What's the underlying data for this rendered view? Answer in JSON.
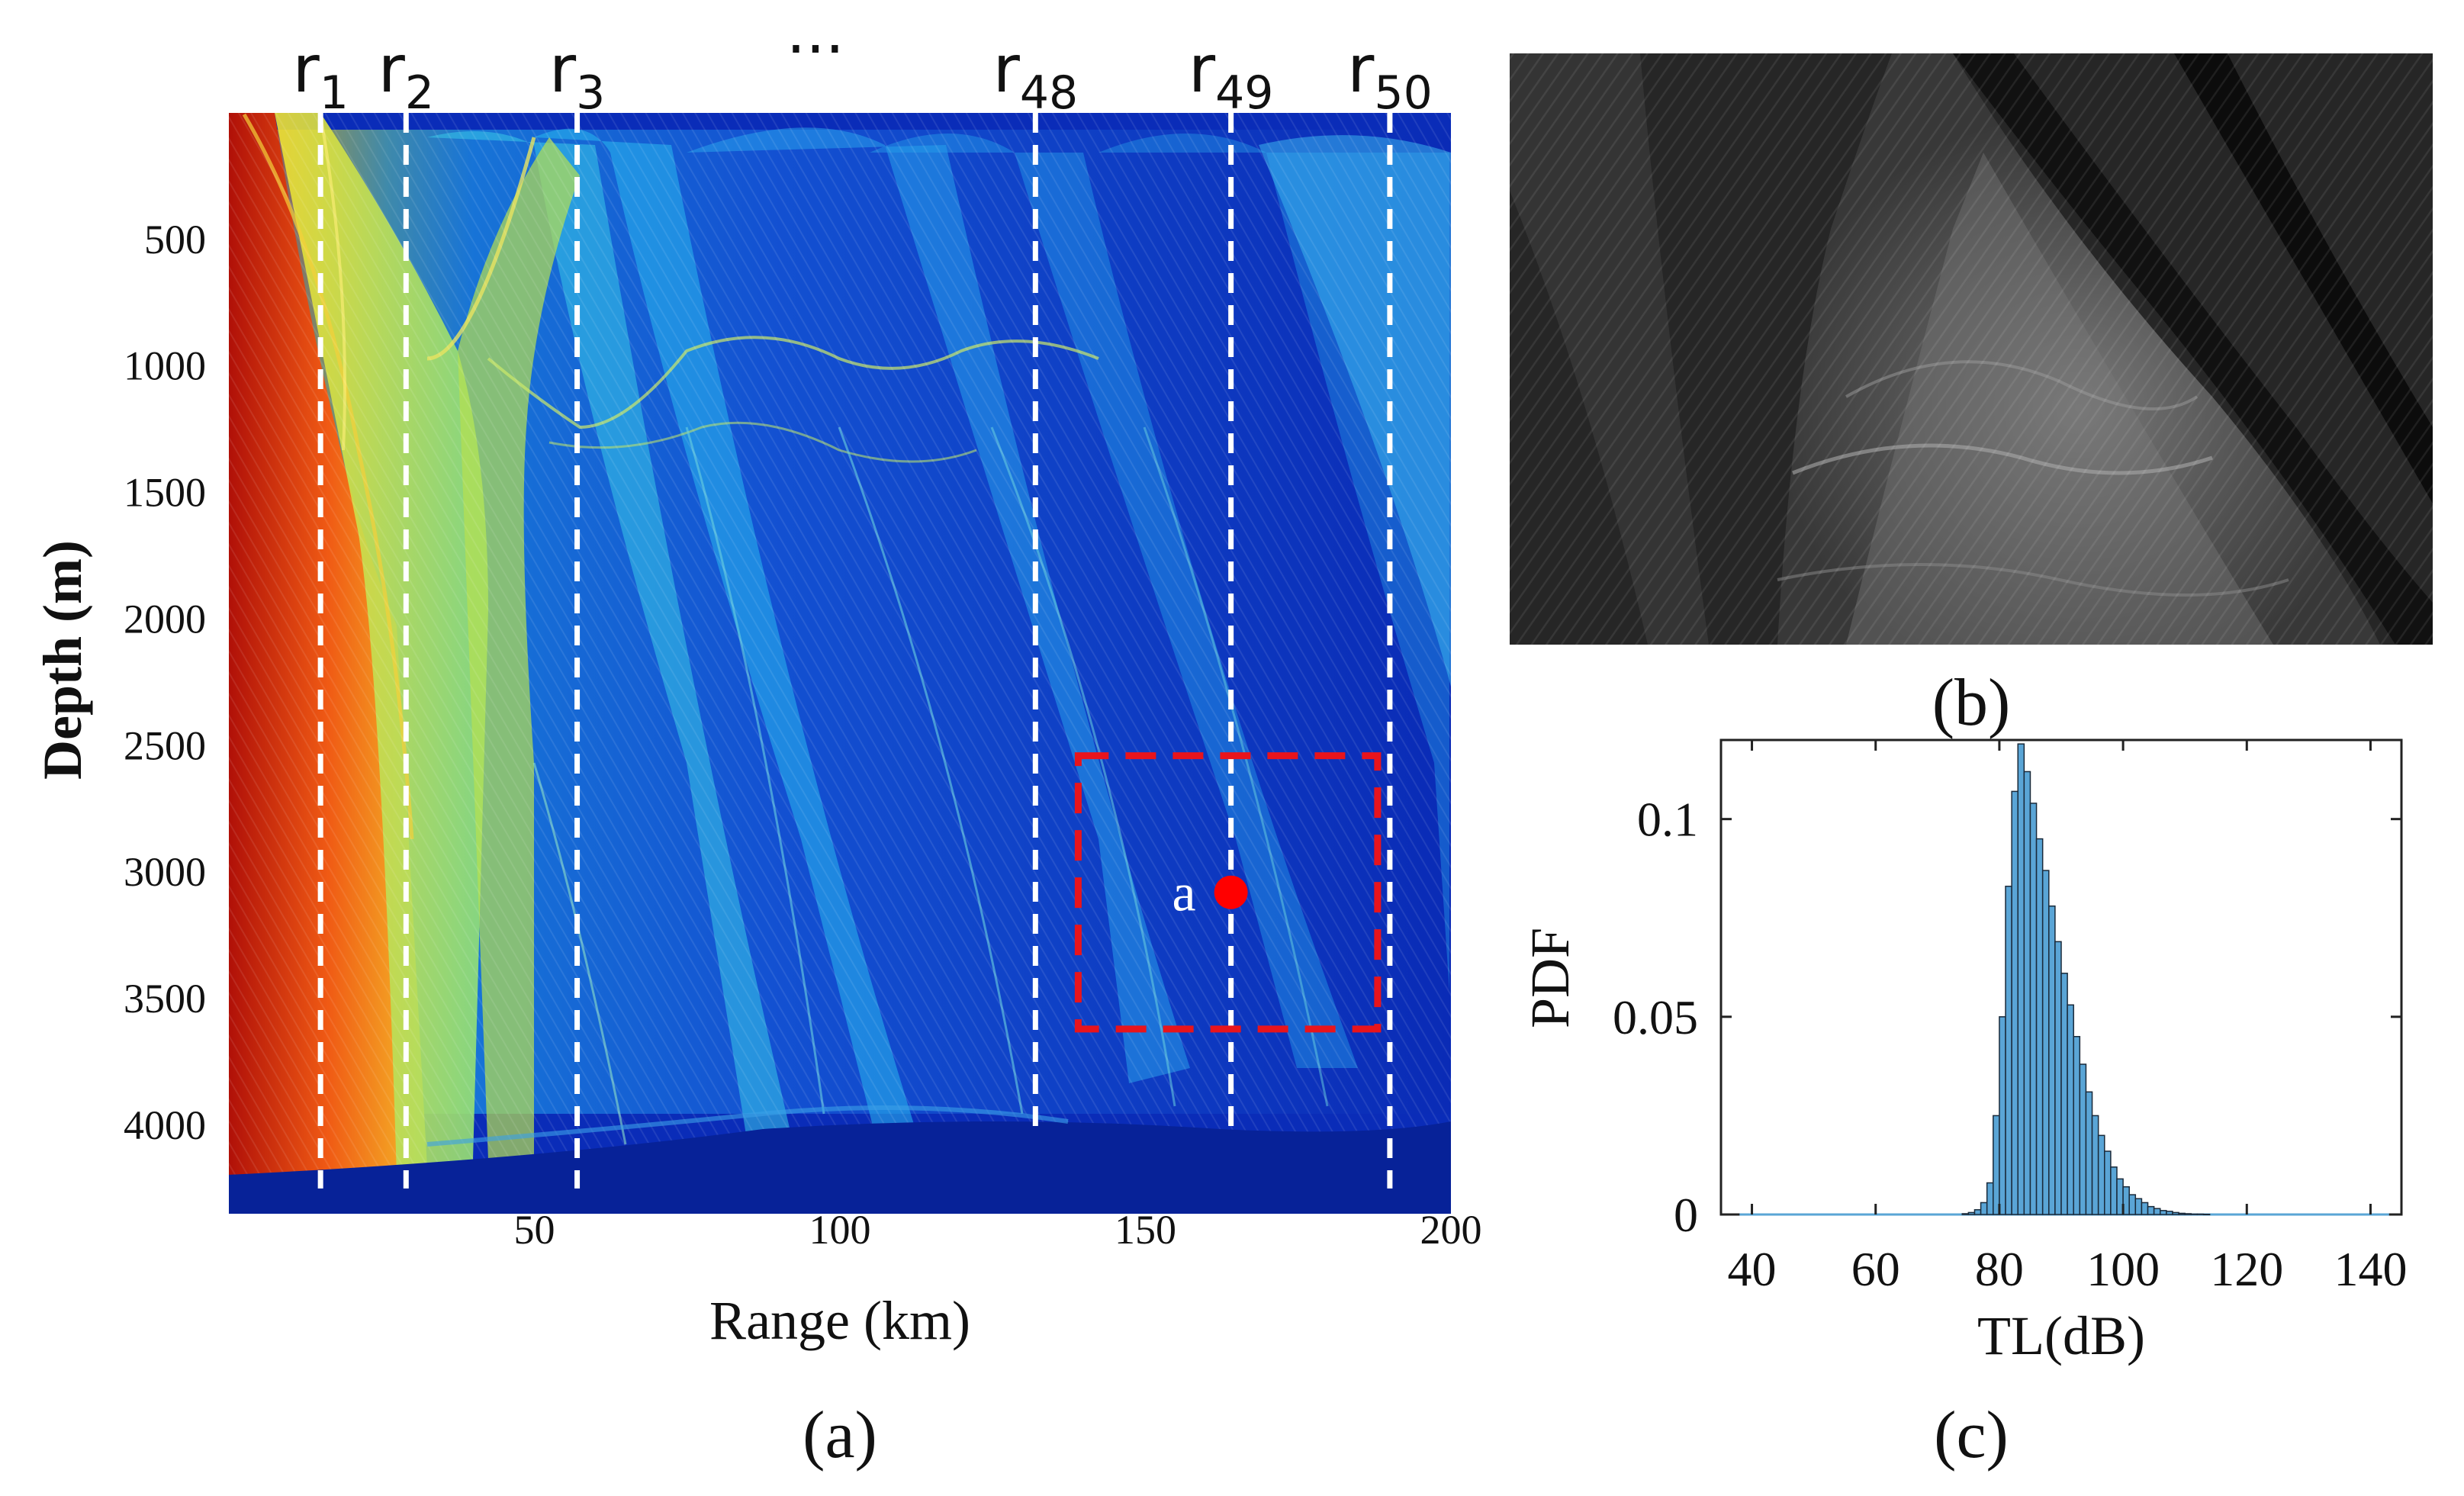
{
  "chart_data": [
    {
      "panel": "(a)",
      "type": "heatmap",
      "xlabel": "Range (km)",
      "ylabel": "Depth (m)",
      "xlim": [
        0,
        200
      ],
      "ylim": [
        0,
        4350
      ],
      "x_ticks": [
        50,
        100,
        150,
        200
      ],
      "y_ticks": [
        500,
        1000,
        1500,
        2000,
        2500,
        3000,
        3500,
        4000
      ],
      "vertical_lines": [
        {
          "sym": "r",
          "sub": "1",
          "x": 15,
          "bottom": 4250
        },
        {
          "sym": "r",
          "sub": "2",
          "x": 29,
          "bottom": 4250
        },
        {
          "sym": "r",
          "sub": "3",
          "x": 57,
          "bottom": 4250
        },
        {
          "sym": "r",
          "sub": "48",
          "x": 132,
          "bottom": 4050
        },
        {
          "sym": "r",
          "sub": "49",
          "x": 164,
          "bottom": 4050
        },
        {
          "sym": "r",
          "sub": "50",
          "x": 190,
          "bottom": 4250
        }
      ],
      "ellipsis": "···",
      "region_box": {
        "x": [
          139,
          188
        ],
        "y": [
          2540,
          3620
        ],
        "color": "#e8141c"
      },
      "point": {
        "label": "a",
        "x": 164,
        "y": 3080,
        "color": "#ff0000"
      }
    },
    {
      "panel": "(b)",
      "type": "image"
    },
    {
      "panel": "(c)",
      "type": "bar",
      "xlabel": "TL(dB)",
      "ylabel": "PDF",
      "xlim": [
        35,
        145
      ],
      "ylim": [
        0,
        0.12
      ],
      "x_ticks": [
        "40",
        "60",
        "80",
        "100",
        "120",
        "140"
      ],
      "y_ticks": [
        "0",
        "0.05",
        "0.1"
      ],
      "bin_width": 1,
      "bin_starts": [
        74,
        75,
        76,
        77,
        78,
        79,
        80,
        81,
        82,
        83,
        84,
        85,
        86,
        87,
        88,
        89,
        90,
        91,
        92,
        93,
        94,
        95,
        96,
        97,
        98,
        99,
        100,
        101,
        102,
        103,
        104,
        105,
        106,
        107,
        108,
        109,
        110,
        111,
        112,
        113
      ],
      "values": [
        0.0002,
        0.0005,
        0.0012,
        0.003,
        0.008,
        0.025,
        0.05,
        0.083,
        0.107,
        0.119,
        0.112,
        0.104,
        0.095,
        0.087,
        0.078,
        0.069,
        0.061,
        0.053,
        0.045,
        0.038,
        0.031,
        0.025,
        0.02,
        0.016,
        0.012,
        0.009,
        0.007,
        0.005,
        0.004,
        0.003,
        0.002,
        0.0015,
        0.001,
        0.0008,
        0.0005,
        0.0003,
        0.0002,
        0.0001,
        0.0001,
        5e-05
      ],
      "bar_color": "#5aa5d6"
    }
  ]
}
